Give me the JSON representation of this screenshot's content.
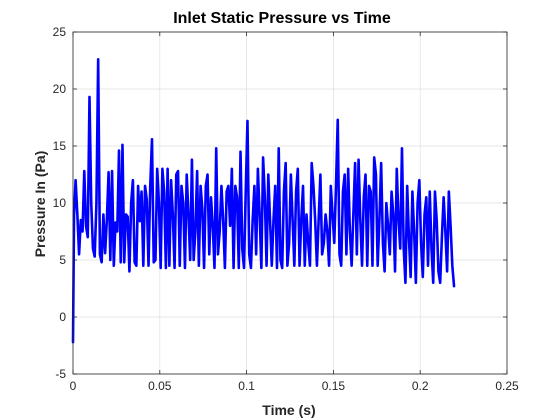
{
  "chart_data": {
    "type": "line",
    "title": "Inlet Static Pressure vs Time",
    "xlabel": "Time (s)",
    "ylabel": "Pressure In (Pa)",
    "xlim": [
      0,
      0.25
    ],
    "ylim": [
      -5,
      25
    ],
    "x_ticks": [
      0,
      0.05,
      0.1,
      0.15,
      0.2,
      0.25
    ],
    "x_tick_labels": [
      "0",
      "0.05",
      "0.1",
      "0.15",
      "0.2",
      "0.25"
    ],
    "y_ticks": [
      -5,
      0,
      5,
      10,
      15,
      20,
      25
    ],
    "y_tick_labels": [
      "-5",
      "0",
      "5",
      "10",
      "15",
      "20",
      "25"
    ],
    "grid": true,
    "line_color": "#0000ff",
    "series": [
      {
        "x": [
          0.0,
          0.0006,
          0.0015,
          0.0025,
          0.0035,
          0.0045,
          0.0055,
          0.0065,
          0.0075,
          0.0085,
          0.0095,
          0.0105,
          0.0115,
          0.0125,
          0.0135,
          0.0145,
          0.0155,
          0.0165,
          0.0175,
          0.0185,
          0.0195,
          0.0205,
          0.0215,
          0.0225,
          0.0235,
          0.0245,
          0.0255,
          0.0265,
          0.0275,
          0.0285,
          0.0295,
          0.0305,
          0.0315,
          0.0325,
          0.0335,
          0.0345,
          0.0355,
          0.0365,
          0.0375,
          0.0385,
          0.0395,
          0.0405,
          0.0415,
          0.0425,
          0.0435,
          0.0445,
          0.0455,
          0.0465,
          0.0475,
          0.0485,
          0.0495,
          0.0505,
          0.0515,
          0.0525,
          0.0535,
          0.0545,
          0.0555,
          0.0565,
          0.0575,
          0.0585,
          0.0595,
          0.0605,
          0.0615,
          0.0625,
          0.0635,
          0.0645,
          0.0655,
          0.0665,
          0.0675,
          0.0685,
          0.0695,
          0.0705,
          0.0715,
          0.0725,
          0.0735,
          0.0745,
          0.0755,
          0.0765,
          0.0775,
          0.0785,
          0.0795,
          0.0805,
          0.0815,
          0.0825,
          0.0835,
          0.0845,
          0.0855,
          0.0865,
          0.0875,
          0.0885,
          0.0895,
          0.0905,
          0.0915,
          0.0925,
          0.0935,
          0.0945,
          0.0955,
          0.0965,
          0.0975,
          0.0985,
          0.0995,
          0.1005,
          0.1015,
          0.1025,
          0.1035,
          0.1045,
          0.1055,
          0.1065,
          0.1075,
          0.1085,
          0.1095,
          0.1105,
          0.1115,
          0.1125,
          0.1135,
          0.1145,
          0.1155,
          0.1165,
          0.1175,
          0.1185,
          0.1195,
          0.1205,
          0.1215,
          0.1225,
          0.1235,
          0.1245,
          0.1255,
          0.1265,
          0.1275,
          0.1285,
          0.1295,
          0.1305,
          0.1315,
          0.1325,
          0.1335,
          0.1345,
          0.1355,
          0.1365,
          0.1375,
          0.1385,
          0.1395,
          0.1405,
          0.1415,
          0.1425,
          0.1435,
          0.1445,
          0.1455,
          0.1465,
          0.1475,
          0.1485,
          0.1495,
          0.1505,
          0.1515,
          0.1525,
          0.1535,
          0.1545,
          0.1555,
          0.1565,
          0.1575,
          0.1585,
          0.1595,
          0.1605,
          0.1615,
          0.1625,
          0.1635,
          0.1645,
          0.1655,
          0.1665,
          0.1675,
          0.1685,
          0.1695,
          0.1705,
          0.1715,
          0.1725,
          0.1735,
          0.1745,
          0.1755,
          0.1765,
          0.1775,
          0.1785,
          0.1795,
          0.1805,
          0.1815,
          0.1825,
          0.1835,
          0.1845,
          0.1855,
          0.1865,
          0.1875,
          0.1885,
          0.1895,
          0.1905,
          0.1915,
          0.1925,
          0.1935,
          0.1945,
          0.1955,
          0.1965,
          0.1975,
          0.1985,
          0.1995,
          0.2005,
          0.2015,
          0.2025,
          0.2035,
          0.2045,
          0.2055,
          0.2065,
          0.2075,
          0.2085,
          0.2095,
          0.2105,
          0.2115,
          0.2125,
          0.2135,
          0.2145,
          0.2155,
          0.2165,
          0.2175,
          0.2185,
          0.2195
        ],
        "y": [
          -2.2,
          9.0,
          12.0,
          9.0,
          5.5,
          8.5,
          7.5,
          12.8,
          8.0,
          7.0,
          19.3,
          10.0,
          6.0,
          5.3,
          10.0,
          22.6,
          5.5,
          4.8,
          9.0,
          5.6,
          8.5,
          12.7,
          5.0,
          12.8,
          4.5,
          8.3,
          7.5,
          14.6,
          4.8,
          15.1,
          4.8,
          9.0,
          8.8,
          4.0,
          10.0,
          12.0,
          4.8,
          4.5,
          11.5,
          8.4,
          11.0,
          4.5,
          11.5,
          10.3,
          4.5,
          11.5,
          15.6,
          4.8,
          5.0,
          13.0,
          10.0,
          4.3,
          13.0,
          11.0,
          4.3,
          13.0,
          4.5,
          12.0,
          9.0,
          4.3,
          12.5,
          12.8,
          4.5,
          11.5,
          10.0,
          4.3,
          12.5,
          9.0,
          5.0,
          13.8,
          5.0,
          7.5,
          12.8,
          4.5,
          11.5,
          9.5,
          4.3,
          11.5,
          12.5,
          5.5,
          10.5,
          8.0,
          4.3,
          14.8,
          5.5,
          7.5,
          11.5,
          8.5,
          4.3,
          11.0,
          11.5,
          8.0,
          13.0,
          4.3,
          11.5,
          10.5,
          4.3,
          14.5,
          6.0,
          4.3,
          11.0,
          17.2,
          5.5,
          4.3,
          8.5,
          11.5,
          5.5,
          13.0,
          9.0,
          4.3,
          14.0,
          10.5,
          4.5,
          12.5,
          8.5,
          4.5,
          8.5,
          11.5,
          4.3,
          14.8,
          5.0,
          4.3,
          11.0,
          13.5,
          4.5,
          6.5,
          12.5,
          8.5,
          4.5,
          11.0,
          13.0,
          4.5,
          8.5,
          11.5,
          4.5,
          9.0,
          6.5,
          4.5,
          13.5,
          11.5,
          8.5,
          4.5,
          8.5,
          12.5,
          5.5,
          6.5,
          9.0,
          7.5,
          4.5,
          11.5,
          9.0,
          6.5,
          11.5,
          17.3,
          5.5,
          4.5,
          11.0,
          12.5,
          5.5,
          13.0,
          7.5,
          4.5,
          9.0,
          13.5,
          5.5,
          13.8,
          8.5,
          4.5,
          10.5,
          12.5,
          4.5,
          11.5,
          11.0,
          4.5,
          14.0,
          12.5,
          4.5,
          8.5,
          13.5,
          6.5,
          4.0,
          10.0,
          8.0,
          5.5,
          11.0,
          9.0,
          4.0,
          13.0,
          8.5,
          6.0,
          14.8,
          6.0,
          3.0,
          11.5,
          7.0,
          3.5,
          11.0,
          7.5,
          3.0,
          10.0,
          12.0,
          6.5,
          3.5,
          9.0,
          10.5,
          4.5,
          11.0,
          6.0,
          3.0,
          11.0,
          8.5,
          4.0,
          3.0,
          7.0,
          10.5,
          7.5,
          4.0,
          11.0,
          8.0,
          4.5,
          2.7
        ]
      }
    ]
  }
}
